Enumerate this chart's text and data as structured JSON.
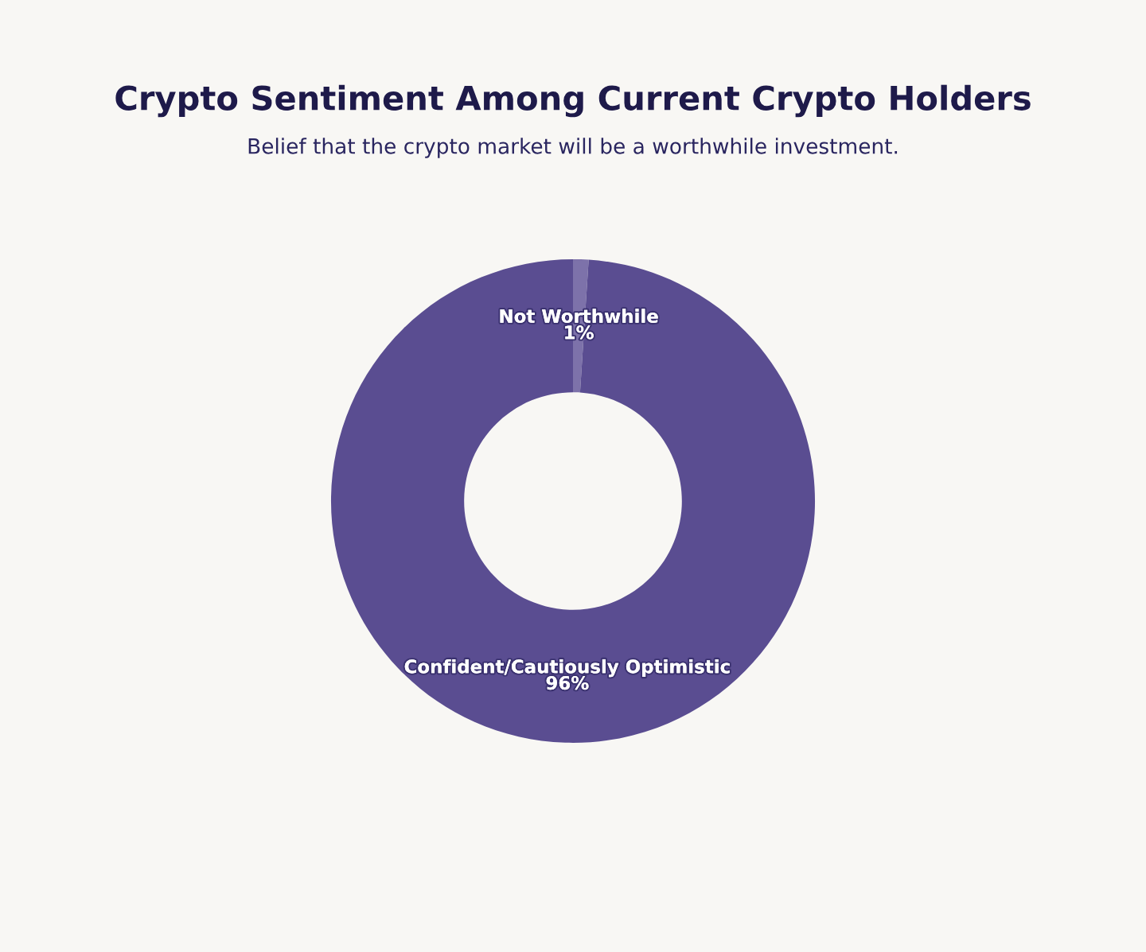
{
  "chart_data": {
    "type": "donut",
    "title": "Crypto Sentiment Among Current Crypto Holders",
    "subtitle": "Belief that the crypto market will be a worthwhile investment.",
    "categories": [
      "Not Worthwhile",
      "Confident/Cautiously Optimistic"
    ],
    "values": [
      1,
      96
    ],
    "value_labels": [
      "1%",
      "96%"
    ],
    "colors": [
      "#7d72aa",
      "#5a4d91"
    ],
    "legend": false
  }
}
